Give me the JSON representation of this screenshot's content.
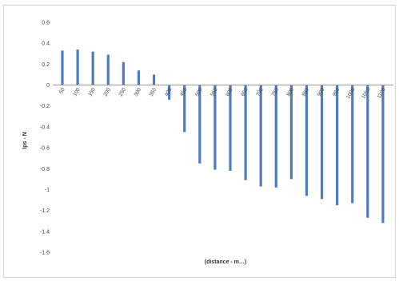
{
  "chart_data": {
    "type": "bar",
    "title": "",
    "ylabel": "Ips - N",
    "xlabel": "(distance - m…)",
    "ylim": [
      -1.6,
      0.6
    ],
    "ytick_step": 0.2,
    "yticks": [
      "0.6",
      "0.4",
      "0.2",
      "0",
      "-0.2",
      "-0.4",
      "-0.6",
      "-0.8",
      "-1",
      "-1.2",
      "-1.4",
      "-1.6"
    ],
    "grid": false,
    "legend": "none",
    "bar_color": "#4f7cc0",
    "categories": [
      "50",
      "100",
      "150",
      "200",
      "250",
      "300",
      "350",
      "400",
      "450",
      "500",
      "550",
      "600",
      "650",
      "700",
      "750",
      "800",
      "850",
      "900",
      "950",
      "1000",
      "1050",
      "1100"
    ],
    "values": [
      0.33,
      0.34,
      0.32,
      0.29,
      0.22,
      0.14,
      0.1,
      -0.14,
      -0.45,
      -0.75,
      -0.81,
      -0.82,
      -0.91,
      -0.97,
      -0.98,
      -0.9,
      -1.06,
      -1.09,
      -1.15,
      -1.13,
      -1.27,
      -1.32
    ]
  }
}
